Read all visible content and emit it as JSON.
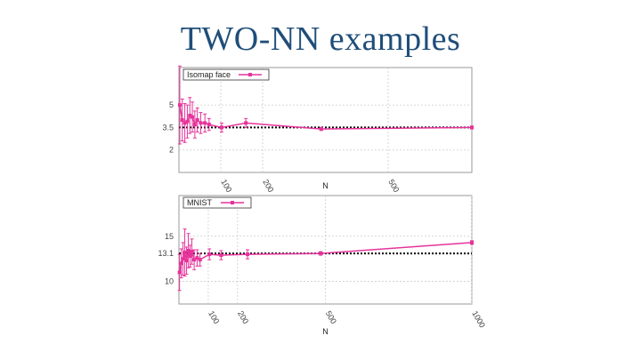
{
  "slide": {
    "title": "TWO-NN examples"
  },
  "colors": {
    "series": "#e6339a",
    "reference": "#000000",
    "grid": "#cccccc",
    "frame": "#999999"
  },
  "chart_data": [
    {
      "type": "line",
      "legend": "Isomap face",
      "legend_placement": "top-left",
      "xlabel": "N",
      "ylabel": "",
      "xlim": [
        0,
        700
      ],
      "ylim": [
        0.5,
        7.5
      ],
      "xticks": [
        100,
        200,
        500
      ],
      "xtick_labels": [
        "100",
        "200",
        "500"
      ],
      "yticks": [
        2,
        3.5,
        5
      ],
      "ytick_labels": [
        "2",
        "3.5",
        "5"
      ],
      "grid": true,
      "reference_line": 3.5,
      "series": [
        {
          "name": "Isomap face",
          "x": [
            2,
            8,
            14,
            20,
            26,
            32,
            38,
            44,
            52,
            62,
            72,
            102,
            160,
            340,
            700
          ],
          "y": [
            5.0,
            4.0,
            3.8,
            3.9,
            4.3,
            4.2,
            3.7,
            4.0,
            3.8,
            3.8,
            3.7,
            3.5,
            3.8,
            3.4,
            3.5
          ],
          "err": [
            2.6,
            1.4,
            1.3,
            1.1,
            1.2,
            1.0,
            0.9,
            0.8,
            0.7,
            0.6,
            0.4,
            0.3,
            0.3,
            0.1,
            0.1
          ]
        }
      ]
    },
    {
      "type": "line",
      "legend": "MNIST",
      "legend_placement": "top-left",
      "xlabel": "N",
      "ylabel": "",
      "xlim": [
        0,
        1000
      ],
      "ylim": [
        7.5,
        19.5
      ],
      "xticks": [
        100,
        200,
        500,
        1000
      ],
      "xtick_labels": [
        "100",
        "200",
        "500",
        "1000"
      ],
      "yticks": [
        10,
        13.1,
        15
      ],
      "ytick_labels": [
        "10",
        "13.1",
        "15"
      ],
      "grid": true,
      "reference_line": 13.1,
      "series": [
        {
          "name": "MNIST",
          "x": [
            2,
            8,
            14,
            20,
            26,
            32,
            38,
            44,
            52,
            62,
            72,
            104,
            144,
            234,
            484,
            1000
          ],
          "y": [
            11.0,
            12.0,
            12.5,
            13.2,
            12.3,
            13.4,
            12.8,
            13.3,
            12.4,
            12.6,
            12.4,
            13.0,
            12.9,
            13.0,
            13.1,
            14.3
          ],
          "err": [
            2.0,
            1.6,
            1.8,
            2.6,
            1.5,
            1.9,
            1.2,
            1.4,
            1.1,
            0.9,
            0.7,
            0.6,
            0.5,
            0.5,
            0.2,
            0.2
          ]
        }
      ]
    }
  ]
}
